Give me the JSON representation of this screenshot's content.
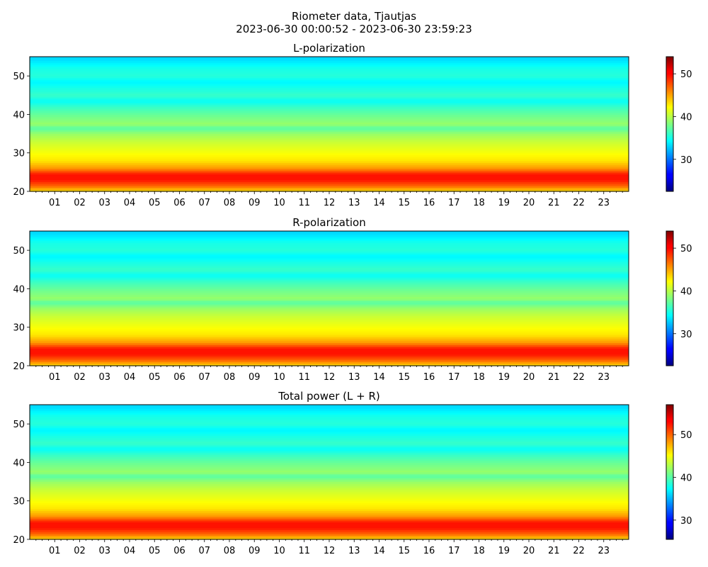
{
  "figure": {
    "title_line1": "Riometer data, Tjautjas",
    "title_line2": "2023-06-30 00:00:52 - 2023-06-30 23:59:23"
  },
  "chart_data": [
    {
      "type": "heatmap",
      "title": "L-polarization",
      "xlabel": "",
      "ylabel": "",
      "xlim": [
        0,
        24
      ],
      "ylim": [
        20,
        55
      ],
      "x_ticks": [
        "01",
        "02",
        "03",
        "04",
        "05",
        "06",
        "07",
        "08",
        "09",
        "10",
        "11",
        "12",
        "13",
        "14",
        "15",
        "16",
        "17",
        "18",
        "19",
        "20",
        "21",
        "22",
        "23"
      ],
      "y_ticks": [
        20,
        30,
        40,
        50
      ],
      "colorbar": {
        "colormap": "jet",
        "range": [
          22.5,
          54
        ],
        "ticks": [
          30,
          40,
          50
        ]
      },
      "row_profile": [
        {
          "y": 20,
          "v": 43
        },
        {
          "y": 21.5,
          "v": 47
        },
        {
          "y": 23,
          "v": 49.5
        },
        {
          "y": 24.5,
          "v": 49.5
        },
        {
          "y": 26,
          "v": 45.5
        },
        {
          "y": 28,
          "v": 43
        },
        {
          "y": 30,
          "v": 42
        },
        {
          "y": 33,
          "v": 40.5
        },
        {
          "y": 35,
          "v": 39
        },
        {
          "y": 36.5,
          "v": 37
        },
        {
          "y": 37.5,
          "v": 39
        },
        {
          "y": 40,
          "v": 37.5
        },
        {
          "y": 42,
          "v": 36
        },
        {
          "y": 43.5,
          "v": 34.5
        },
        {
          "y": 45,
          "v": 36
        },
        {
          "y": 47,
          "v": 35
        },
        {
          "y": 48.5,
          "v": 34
        },
        {
          "y": 50,
          "v": 35.5
        },
        {
          "y": 52,
          "v": 35
        },
        {
          "y": 54,
          "v": 33.5
        },
        {
          "y": 55,
          "v": 33
        }
      ]
    },
    {
      "type": "heatmap",
      "title": "R-polarization",
      "xlabel": "",
      "ylabel": "",
      "xlim": [
        0,
        24
      ],
      "ylim": [
        20,
        55
      ],
      "x_ticks": [
        "01",
        "02",
        "03",
        "04",
        "05",
        "06",
        "07",
        "08",
        "09",
        "10",
        "11",
        "12",
        "13",
        "14",
        "15",
        "16",
        "17",
        "18",
        "19",
        "20",
        "21",
        "22",
        "23"
      ],
      "y_ticks": [
        20,
        30,
        40,
        50
      ],
      "colorbar": {
        "colormap": "jet",
        "range": [
          22.5,
          54
        ],
        "ticks": [
          30,
          40,
          50
        ]
      },
      "row_profile": [
        {
          "y": 20,
          "v": 43
        },
        {
          "y": 21.5,
          "v": 47
        },
        {
          "y": 23,
          "v": 49.5
        },
        {
          "y": 24.5,
          "v": 49.5
        },
        {
          "y": 26,
          "v": 45.5
        },
        {
          "y": 28,
          "v": 43
        },
        {
          "y": 30,
          "v": 42
        },
        {
          "y": 33,
          "v": 40.5
        },
        {
          "y": 35,
          "v": 39
        },
        {
          "y": 36.5,
          "v": 37
        },
        {
          "y": 37.5,
          "v": 39
        },
        {
          "y": 40,
          "v": 37.5
        },
        {
          "y": 42,
          "v": 36
        },
        {
          "y": 43.5,
          "v": 34.5
        },
        {
          "y": 45,
          "v": 36
        },
        {
          "y": 47,
          "v": 35
        },
        {
          "y": 48.5,
          "v": 34
        },
        {
          "y": 50,
          "v": 35.5
        },
        {
          "y": 52,
          "v": 35
        },
        {
          "y": 54,
          "v": 33.5
        },
        {
          "y": 55,
          "v": 33
        }
      ]
    },
    {
      "type": "heatmap",
      "title": "Total power (L + R)",
      "xlabel": "",
      "ylabel": "",
      "xlim": [
        0,
        24
      ],
      "ylim": [
        20,
        55
      ],
      "x_ticks": [
        "01",
        "02",
        "03",
        "04",
        "05",
        "06",
        "07",
        "08",
        "09",
        "10",
        "11",
        "12",
        "13",
        "14",
        "15",
        "16",
        "17",
        "18",
        "19",
        "20",
        "21",
        "22",
        "23"
      ],
      "y_ticks": [
        20,
        30,
        40,
        50
      ],
      "colorbar": {
        "colormap": "jet",
        "range": [
          25.5,
          57
        ],
        "ticks": [
          30,
          40,
          50
        ]
      },
      "row_profile": [
        {
          "y": 20,
          "v": 46
        },
        {
          "y": 21.5,
          "v": 50
        },
        {
          "y": 23,
          "v": 52.5
        },
        {
          "y": 24.5,
          "v": 52.5
        },
        {
          "y": 26,
          "v": 48.5
        },
        {
          "y": 28,
          "v": 46
        },
        {
          "y": 30,
          "v": 45
        },
        {
          "y": 33,
          "v": 43.5
        },
        {
          "y": 35,
          "v": 42
        },
        {
          "y": 36.5,
          "v": 40
        },
        {
          "y": 37.5,
          "v": 42
        },
        {
          "y": 40,
          "v": 40.5
        },
        {
          "y": 42,
          "v": 39
        },
        {
          "y": 43.5,
          "v": 37.5
        },
        {
          "y": 45,
          "v": 39
        },
        {
          "y": 47,
          "v": 38
        },
        {
          "y": 48.5,
          "v": 37
        },
        {
          "y": 50,
          "v": 38.5
        },
        {
          "y": 52,
          "v": 38
        },
        {
          "y": 54,
          "v": 36.5
        },
        {
          "y": 55,
          "v": 36
        }
      ]
    }
  ]
}
